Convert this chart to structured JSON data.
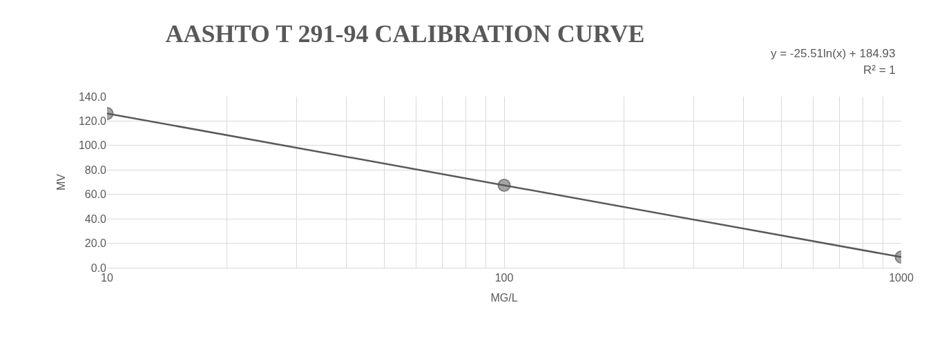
{
  "chart_data": {
    "type": "scatter",
    "title": "AASHTO T 291-94 CALIBRATION CURVE",
    "xlabel": "MG/L",
    "ylabel": "MV",
    "x": [
      10,
      100,
      1000
    ],
    "series": [
      {
        "color": "#a6a6a6",
        "marker": "circle",
        "values": [
          126.2,
          67.5,
          8.7
        ]
      },
      {
        "type": "line",
        "color": "#595959",
        "x": [
          10,
          1000
        ],
        "values": [
          126.2,
          8.7
        ]
      }
    ],
    "annotations": [
      "y = -25.51ln(x) + 184.93",
      "R² = 1"
    ],
    "log": "x",
    "xlim": [
      10,
      1000
    ],
    "xticks": [
      10,
      100,
      1000
    ],
    "ylim": [
      0,
      140
    ],
    "yticks": [
      {
        "value": 0,
        "label": "0.0"
      },
      {
        "value": 20,
        "label": "20.0"
      },
      {
        "value": 40,
        "label": "40.0"
      },
      {
        "value": 60,
        "label": "60.0"
      },
      {
        "value": 80,
        "label": "80.0"
      },
      {
        "value": 100,
        "label": "100.0"
      },
      {
        "value": 120,
        "label": "120.0"
      },
      {
        "value": 140,
        "label": "140.0"
      }
    ],
    "grid": true,
    "line_style": "solid"
  }
}
